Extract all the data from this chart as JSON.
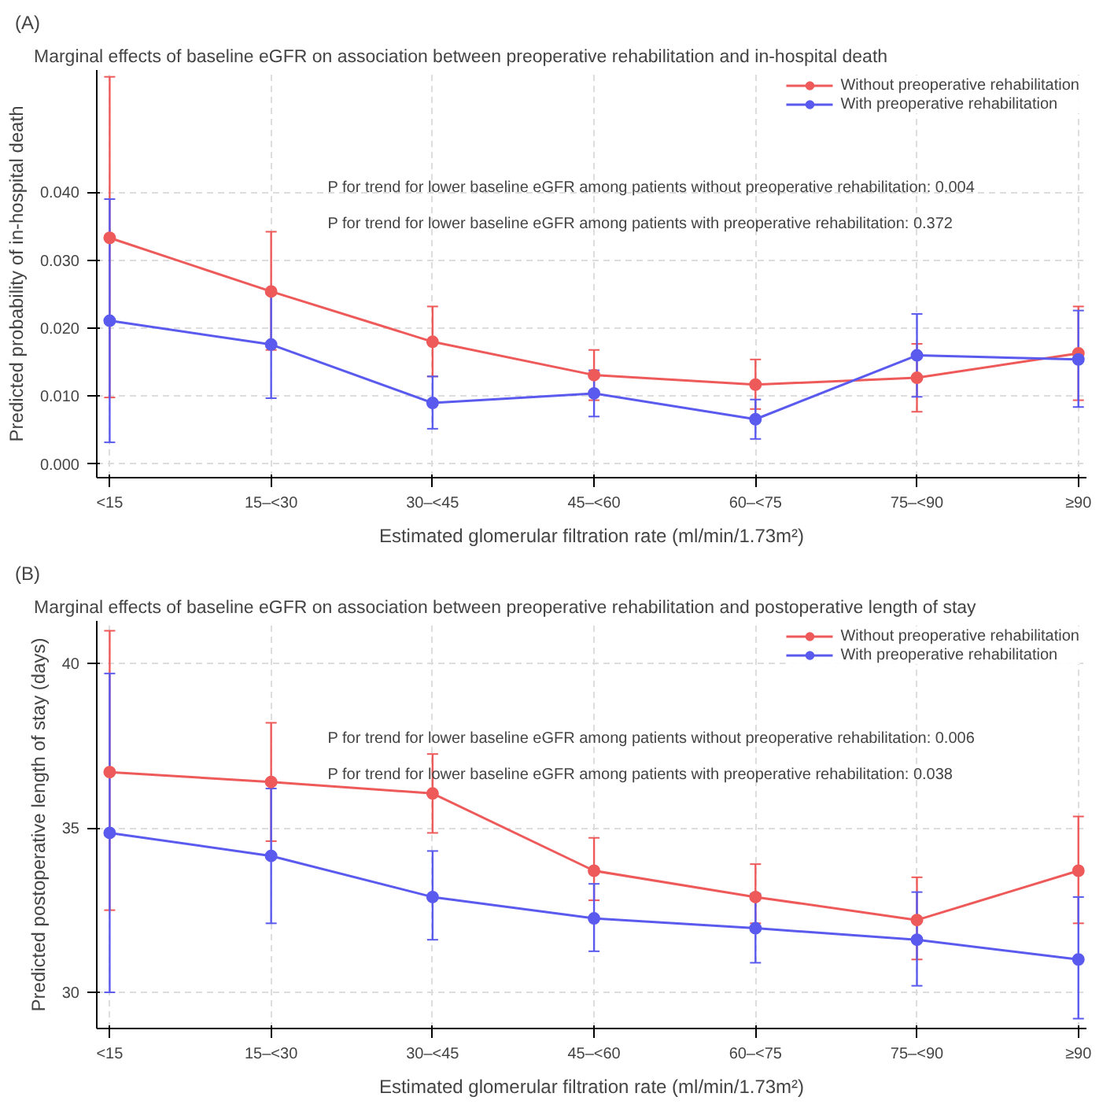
{
  "chart_data": [
    {
      "type": "line",
      "title": "Marginal effects of baseline eGFR on association between preoperative rehabilitation and in-hospital death",
      "xlabel": "Estimated glomerular filtration rate (ml/min/1.73m²)",
      "ylabel": "Predicted probability of in-hospital death",
      "categories": [
        "<15",
        "15–<30",
        "30–<45",
        "45–<60",
        "60–<75",
        "75–<90",
        "≥90"
      ],
      "series": [
        {
          "name": "Without preoperative rehabilitation",
          "color": "#ee5a5a",
          "values": [
            0.0333,
            0.0254,
            0.018,
            0.0131,
            0.0117,
            0.0127,
            0.0163
          ],
          "errors": [
            [
              0.0098,
              0.057
            ],
            [
              0.0168,
              0.0342
            ],
            [
              0.0129,
              0.0232
            ],
            [
              0.0094,
              0.0168
            ],
            [
              0.0081,
              0.0154
            ],
            [
              0.0077,
              0.0177
            ],
            [
              0.0094,
              0.0232
            ]
          ]
        },
        {
          "name": "With preoperative rehabilitation",
          "color": "#5a5aee",
          "values": [
            0.0211,
            0.0176,
            0.009,
            0.0104,
            0.0066,
            0.016,
            0.0154
          ],
          "errors": [
            [
              0.0032,
              0.039
            ],
            [
              0.0097,
              0.0255
            ],
            [
              0.0052,
              0.0129
            ],
            [
              0.007,
              0.0138
            ],
            [
              0.0037,
              0.0095
            ],
            [
              0.0099,
              0.0221
            ],
            [
              0.0084,
              0.0226
            ]
          ]
        }
      ],
      "ylim": [
        -0.002,
        0.058
      ],
      "yticks": [
        {
          "value": 0,
          "label": "0.000"
        },
        {
          "value": 0.01,
          "label": "0.010"
        },
        {
          "value": 0.02,
          "label": "0.020"
        },
        {
          "value": 0.03,
          "label": "0.030"
        },
        {
          "value": 0.04,
          "label": "0.040"
        }
      ],
      "annotations": [
        "(A)",
        "P for trend for lower baseline eGFR among patients without preoperative rehabilitation: 0.004",
        "P for trend for lower baseline eGFR among patients with preoperative rehabilitation: 0.372"
      ],
      "grid": true,
      "legend": "top right",
      "marker": "circle",
      "line_style": "solid"
    },
    {
      "type": "line",
      "title": "Marginal effects of baseline eGFR on association between preoperative rehabilitation and postoperative length of stay",
      "xlabel": "Estimated glomerular filtration rate (ml/min/1.73m²)",
      "ylabel": "Predicted postoperative length of stay (days)",
      "categories": [
        "<15",
        "15–<30",
        "30–<45",
        "45–<60",
        "60–<75",
        "75–<90",
        "≥90"
      ],
      "series": [
        {
          "name": "Without preoperative rehabilitation",
          "color": "#ee5a5a",
          "values": [
            36.7,
            36.4,
            36.05,
            33.7,
            32.9,
            32.2,
            33.7
          ],
          "errors": [
            [
              32.5,
              41.0
            ],
            [
              34.6,
              38.2
            ],
            [
              34.85,
              37.25
            ],
            [
              32.8,
              34.7
            ],
            [
              32.1,
              33.9
            ],
            [
              31.0,
              33.5
            ],
            [
              32.1,
              35.35
            ]
          ]
        },
        {
          "name": "With preoperative rehabilitation",
          "color": "#5a5aee",
          "values": [
            34.85,
            34.15,
            32.9,
            32.25,
            31.95,
            31.6,
            31.0
          ],
          "errors": [
            [
              30.0,
              39.7
            ],
            [
              32.1,
              36.2
            ],
            [
              31.6,
              34.3
            ],
            [
              31.25,
              33.3
            ],
            [
              30.9,
              33.0
            ],
            [
              30.2,
              33.05
            ],
            [
              29.2,
              32.9
            ]
          ]
        }
      ],
      "ylim": [
        28.9,
        41.3
      ],
      "yticks": [
        30,
        35,
        40
      ],
      "annotations": [
        "(B)",
        "P for trend for lower baseline eGFR among patients without preoperative rehabilitation: 0.006",
        "P for trend for lower baseline eGFR among patients with preoperative rehabilitation: 0.038"
      ],
      "grid": true,
      "legend": "top right",
      "marker": "circle",
      "line_style": "solid"
    }
  ]
}
